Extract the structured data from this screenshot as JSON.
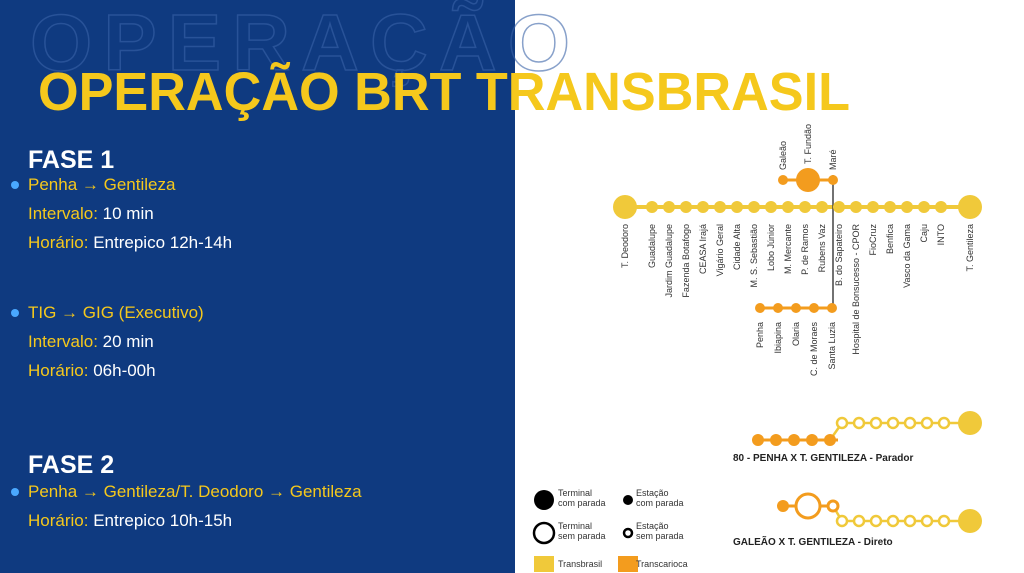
{
  "header": {
    "watermark": "OPERAÇÃO",
    "title": "OPERAÇÃO BRT TRANSBRASIL"
  },
  "phases": [
    {
      "title": "FASE 1",
      "items": [
        {
          "route": "Penha → Gentileza",
          "lines": [
            {
              "label": "Intervalo:",
              "value": "10 min"
            },
            {
              "label": "Horário:",
              "value": "Entrepico 12h-14h"
            }
          ]
        },
        {
          "route": "TIG → GIG (Executivo)",
          "lines": [
            {
              "label": "Intervalo:",
              "value": "20 min"
            },
            {
              "label": "Horário:",
              "value": "06h-00h"
            }
          ]
        }
      ]
    },
    {
      "title": "FASE 2",
      "items": [
        {
          "route": "Penha → Gentileza/T. Deodoro → Gentileza",
          "lines": [
            {
              "label": "Horário:",
              "value": "Entrepico 10h-15h"
            }
          ]
        }
      ]
    }
  ],
  "map": {
    "main_line": [
      "T. Deodoro",
      "Guadalupe",
      "Jardim Guadalupe",
      "Fazenda Botafogo",
      "CEASA Irajá",
      "Vigário Geral",
      "Cidade Alta",
      "M. S. Sebastião",
      "Lobo Júnior",
      "M. Mercante",
      "P. de Ramos",
      "Rubens Vaz",
      "B. do Sapateiro",
      "Hospital de Bonsucesso - CPOR",
      "FioCruz",
      "Benfica",
      "Vasco da Gama",
      "Caju",
      "INTO",
      "T. Gentileza"
    ],
    "top_branch": [
      "Galeão",
      "T. Fundão",
      "Maré"
    ],
    "bottom_branch": [
      "Penha",
      "Ibiapina",
      "Olaria",
      "C. de Moraes",
      "Santa Luzia"
    ]
  },
  "routes": [
    "80 - PENHA X T. GENTILEZA - Parador",
    "GALEÃO X T. GENTILEZA - Direto"
  ],
  "legend": [
    {
      "lines": [
        "Terminal",
        "com parada"
      ]
    },
    {
      "lines": [
        "Estação",
        "com parada"
      ]
    },
    {
      "lines": [
        "Terminal",
        "sem parada"
      ]
    },
    {
      "lines": [
        "Estação",
        "sem parada"
      ]
    },
    {
      "lines": [
        "Transbrasil"
      ]
    },
    {
      "lines": [
        "Transcarioca"
      ]
    }
  ]
}
